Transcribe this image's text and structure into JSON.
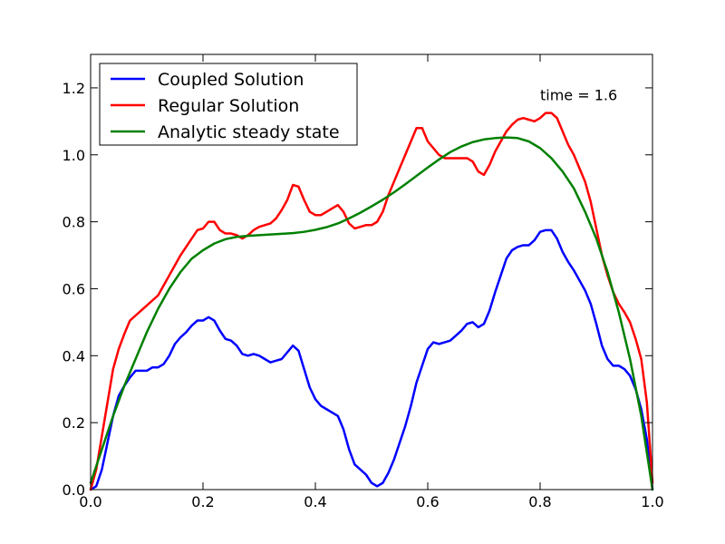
{
  "chart_data": {
    "type": "line",
    "title": "",
    "xlabel": "",
    "ylabel": "",
    "xlim": [
      0.0,
      1.0
    ],
    "ylim": [
      0.0,
      1.3
    ],
    "xticks": [
      "0.0",
      "0.2",
      "0.4",
      "0.6",
      "0.8",
      "1.0"
    ],
    "yticks": [
      "0.0",
      "0.2",
      "0.4",
      "0.6",
      "0.8",
      "1.0",
      "1.2"
    ],
    "grid": false,
    "legend_position": "top-left",
    "annotations": [
      {
        "text": "time = 1.6",
        "x": 0.8,
        "y": 1.18
      }
    ],
    "series": [
      {
        "name": "Coupled Solution",
        "color": "#0000ff",
        "x": [
          0.0,
          0.01,
          0.02,
          0.03,
          0.04,
          0.05,
          0.06,
          0.07,
          0.08,
          0.09,
          0.1,
          0.11,
          0.12,
          0.13,
          0.14,
          0.15,
          0.16,
          0.17,
          0.18,
          0.19,
          0.2,
          0.21,
          0.22,
          0.23,
          0.24,
          0.25,
          0.26,
          0.27,
          0.28,
          0.29,
          0.3,
          0.31,
          0.32,
          0.33,
          0.34,
          0.35,
          0.36,
          0.37,
          0.38,
          0.39,
          0.4,
          0.41,
          0.42,
          0.43,
          0.44,
          0.45,
          0.46,
          0.47,
          0.48,
          0.49,
          0.5,
          0.51,
          0.52,
          0.53,
          0.54,
          0.55,
          0.56,
          0.57,
          0.58,
          0.59,
          0.6,
          0.61,
          0.62,
          0.63,
          0.64,
          0.65,
          0.66,
          0.67,
          0.68,
          0.69,
          0.7,
          0.71,
          0.72,
          0.73,
          0.74,
          0.75,
          0.76,
          0.77,
          0.78,
          0.79,
          0.8,
          0.81,
          0.82,
          0.83,
          0.84,
          0.85,
          0.86,
          0.87,
          0.88,
          0.89,
          0.9,
          0.91,
          0.92,
          0.93,
          0.94,
          0.95,
          0.96,
          0.97,
          0.98,
          0.99,
          1.0
        ],
        "y": [
          0.0,
          0.01,
          0.06,
          0.14,
          0.22,
          0.28,
          0.31,
          0.335,
          0.355,
          0.355,
          0.355,
          0.365,
          0.365,
          0.375,
          0.4,
          0.435,
          0.455,
          0.47,
          0.49,
          0.505,
          0.505,
          0.515,
          0.505,
          0.475,
          0.45,
          0.445,
          0.43,
          0.405,
          0.4,
          0.405,
          0.4,
          0.39,
          0.38,
          0.385,
          0.39,
          0.41,
          0.43,
          0.415,
          0.36,
          0.305,
          0.27,
          0.25,
          0.24,
          0.23,
          0.22,
          0.18,
          0.12,
          0.075,
          0.06,
          0.045,
          0.02,
          0.01,
          0.02,
          0.05,
          0.09,
          0.14,
          0.19,
          0.25,
          0.32,
          0.37,
          0.42,
          0.44,
          0.435,
          0.44,
          0.445,
          0.46,
          0.475,
          0.495,
          0.5,
          0.485,
          0.495,
          0.535,
          0.59,
          0.64,
          0.69,
          0.715,
          0.725,
          0.73,
          0.73,
          0.745,
          0.77,
          0.775,
          0.775,
          0.75,
          0.71,
          0.68,
          0.655,
          0.625,
          0.595,
          0.555,
          0.495,
          0.43,
          0.39,
          0.37,
          0.37,
          0.36,
          0.34,
          0.3,
          0.24,
          0.15,
          0.0
        ]
      },
      {
        "name": "Regular Solution",
        "color": "#ff0000",
        "x": [
          0.0,
          0.01,
          0.02,
          0.03,
          0.04,
          0.05,
          0.06,
          0.07,
          0.08,
          0.09,
          0.1,
          0.11,
          0.12,
          0.13,
          0.14,
          0.15,
          0.16,
          0.17,
          0.18,
          0.19,
          0.2,
          0.21,
          0.22,
          0.23,
          0.24,
          0.25,
          0.26,
          0.27,
          0.28,
          0.29,
          0.3,
          0.31,
          0.32,
          0.33,
          0.34,
          0.35,
          0.36,
          0.37,
          0.38,
          0.39,
          0.4,
          0.41,
          0.42,
          0.43,
          0.44,
          0.45,
          0.46,
          0.47,
          0.48,
          0.49,
          0.5,
          0.51,
          0.52,
          0.53,
          0.54,
          0.55,
          0.56,
          0.57,
          0.58,
          0.59,
          0.6,
          0.61,
          0.62,
          0.63,
          0.64,
          0.65,
          0.66,
          0.67,
          0.68,
          0.69,
          0.7,
          0.71,
          0.72,
          0.73,
          0.74,
          0.75,
          0.76,
          0.77,
          0.78,
          0.79,
          0.8,
          0.81,
          0.82,
          0.83,
          0.84,
          0.85,
          0.86,
          0.87,
          0.88,
          0.89,
          0.9,
          0.91,
          0.92,
          0.93,
          0.94,
          0.95,
          0.96,
          0.97,
          0.98,
          0.99,
          1.0
        ],
        "y": [
          0.0,
          0.06,
          0.16,
          0.26,
          0.36,
          0.42,
          0.465,
          0.505,
          0.52,
          0.535,
          0.55,
          0.565,
          0.58,
          0.61,
          0.64,
          0.67,
          0.7,
          0.725,
          0.75,
          0.775,
          0.78,
          0.8,
          0.8,
          0.775,
          0.765,
          0.765,
          0.76,
          0.75,
          0.76,
          0.775,
          0.785,
          0.79,
          0.795,
          0.81,
          0.835,
          0.865,
          0.91,
          0.905,
          0.865,
          0.83,
          0.82,
          0.82,
          0.83,
          0.84,
          0.85,
          0.83,
          0.795,
          0.78,
          0.785,
          0.79,
          0.79,
          0.8,
          0.83,
          0.88,
          0.92,
          0.96,
          1.0,
          1.04,
          1.08,
          1.08,
          1.04,
          1.02,
          1.0,
          0.99,
          0.99,
          0.99,
          0.99,
          0.99,
          0.98,
          0.95,
          0.94,
          0.97,
          1.01,
          1.04,
          1.07,
          1.09,
          1.105,
          1.11,
          1.105,
          1.1,
          1.11,
          1.125,
          1.125,
          1.11,
          1.07,
          1.03,
          1.0,
          0.96,
          0.92,
          0.86,
          0.78,
          0.7,
          0.64,
          0.59,
          0.555,
          0.53,
          0.5,
          0.45,
          0.39,
          0.26,
          0.02
        ]
      },
      {
        "name": "Analytic steady state",
        "color": "#008000",
        "x": [
          0.0,
          0.02,
          0.04,
          0.06,
          0.08,
          0.1,
          0.12,
          0.14,
          0.16,
          0.18,
          0.2,
          0.22,
          0.24,
          0.26,
          0.28,
          0.3,
          0.32,
          0.34,
          0.36,
          0.38,
          0.4,
          0.42,
          0.44,
          0.46,
          0.48,
          0.5,
          0.52,
          0.54,
          0.56,
          0.58,
          0.6,
          0.62,
          0.64,
          0.66,
          0.68,
          0.7,
          0.72,
          0.74,
          0.76,
          0.78,
          0.8,
          0.82,
          0.84,
          0.86,
          0.88,
          0.9,
          0.92,
          0.94,
          0.96,
          0.98,
          1.0
        ],
        "y": [
          0.02,
          0.12,
          0.22,
          0.31,
          0.39,
          0.47,
          0.54,
          0.6,
          0.65,
          0.69,
          0.715,
          0.735,
          0.748,
          0.755,
          0.758,
          0.76,
          0.762,
          0.764,
          0.766,
          0.77,
          0.776,
          0.784,
          0.795,
          0.81,
          0.827,
          0.846,
          0.866,
          0.888,
          0.912,
          0.937,
          0.962,
          0.986,
          1.008,
          1.025,
          1.038,
          1.046,
          1.05,
          1.052,
          1.05,
          1.04,
          1.02,
          0.99,
          0.95,
          0.9,
          0.83,
          0.75,
          0.65,
          0.53,
          0.39,
          0.22,
          0.0
        ]
      }
    ]
  }
}
